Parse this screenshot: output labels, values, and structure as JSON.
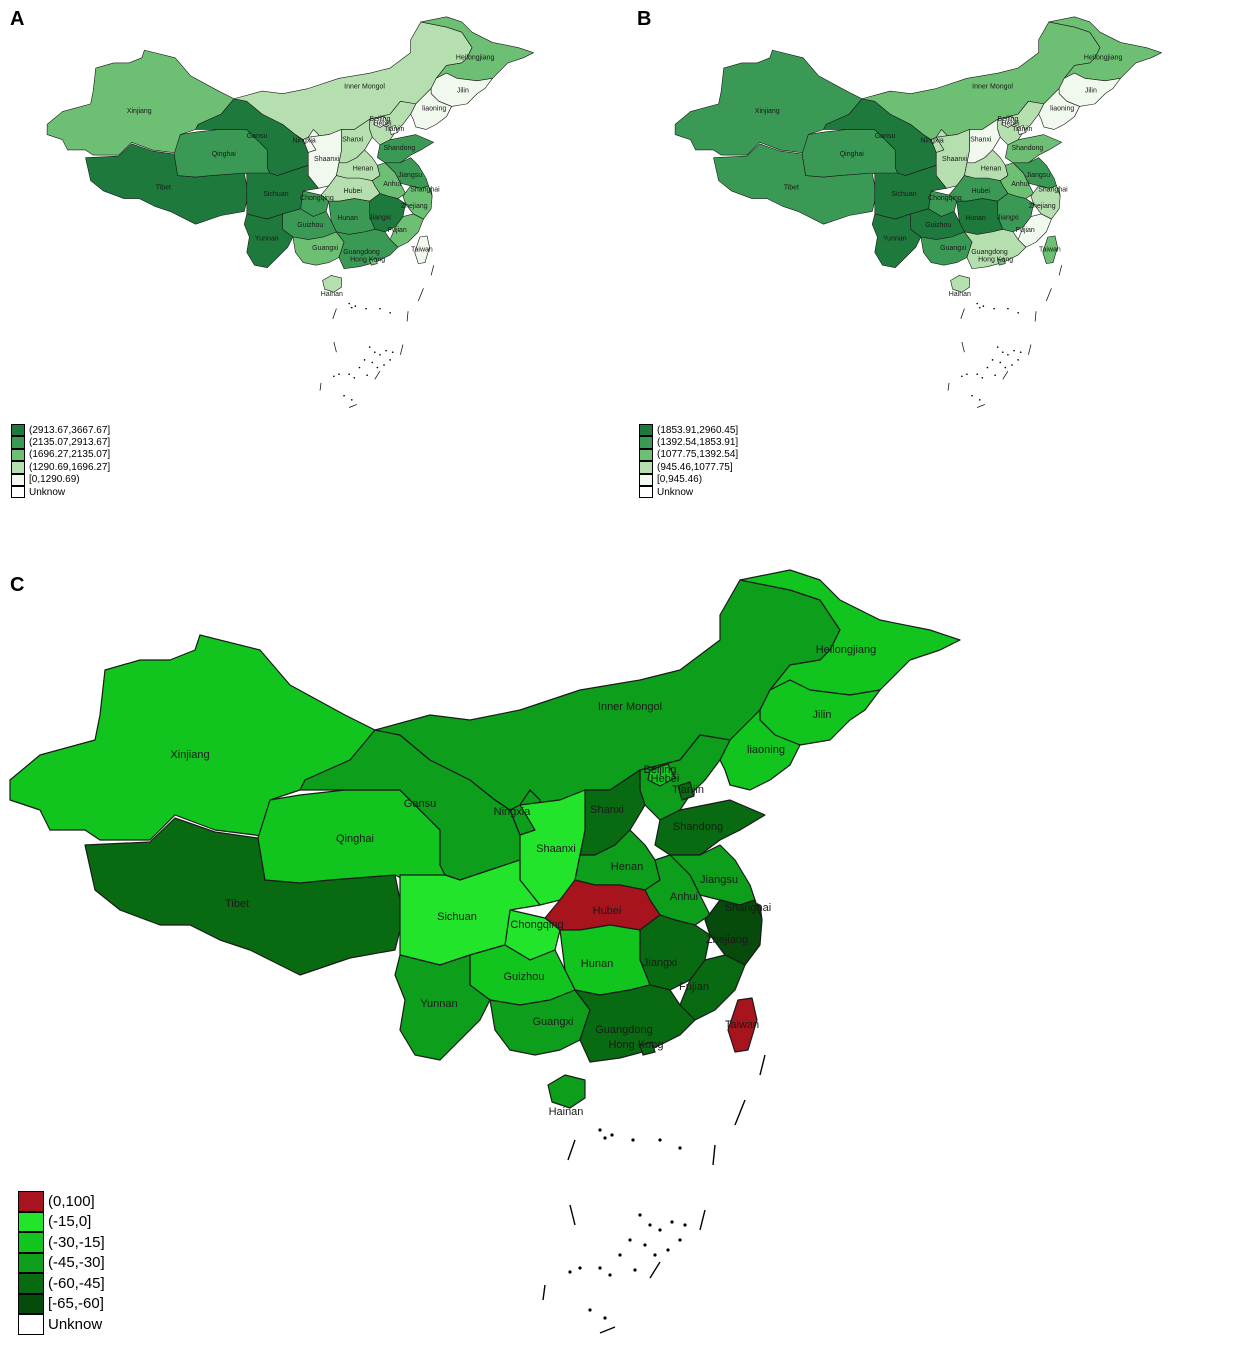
{
  "panels": [
    {
      "letter": "A",
      "legend": {
        "items": [
          {
            "label": "(2913.67,3667.67]",
            "color": "#1e7a3c"
          },
          {
            "label": "(2135.07,2913.67]",
            "color": "#3a9a55"
          },
          {
            "label": "(1696.27,2135.07]",
            "color": "#6dbf73"
          },
          {
            "label": "(1290.69,1696.27]",
            "color": "#b6dfb0"
          },
          {
            "label": "[0,1290.69)",
            "color": "#f1f9ef"
          },
          {
            "label": "Unknow",
            "color": "#ffffff"
          }
        ]
      },
      "provinces": {
        "Xinjiang": 2,
        "Tibet": 0,
        "Qinghai": 1,
        "Gansu": 0,
        "Inner Mongol": 3,
        "Heilongjiang": 2,
        "Jilin": 4,
        "liaoning": 4,
        "Sichuan": 0,
        "Yunnan": 0,
        "Guizhou": 1,
        "Chongqing": 1,
        "Shaanxi": 4,
        "Ningxia": 4,
        "Shanxi": 3,
        "Henan": 3,
        "Hubei": 3,
        "Hunan": 1,
        "Guangxi": 2,
        "Guangdong": 1,
        "Jiangxi": 0,
        "Fujian": 2,
        "Zhejiang": 2,
        "Anhui": 2,
        "Jiangsu": 1,
        "Shandong": 1,
        "Hebei": 3,
        "Beijing": 4,
        "Tianjin": 4,
        "Shanghai": 1,
        "Hainan": 3,
        "Taiwan": 4,
        "Hong Kong": 2
      }
    },
    {
      "letter": "B",
      "legend": {
        "items": [
          {
            "label": "(1853.91,2960.45]",
            "color": "#1e7a3c"
          },
          {
            "label": "(1392.54,1853.91]",
            "color": "#3a9a55"
          },
          {
            "label": "(1077.75,1392.54]",
            "color": "#6dbf73"
          },
          {
            "label": "(945.46,1077.75]",
            "color": "#b6dfb0"
          },
          {
            "label": "[0,945.46)",
            "color": "#f1f9ef"
          },
          {
            "label": "Unknow",
            "color": "#ffffff"
          }
        ]
      },
      "provinces": {
        "Xinjiang": 1,
        "Tibet": 1,
        "Qinghai": 1,
        "Gansu": 0,
        "Inner Mongol": 2,
        "Heilongjiang": 2,
        "Jilin": 4,
        "liaoning": 4,
        "Sichuan": 0,
        "Yunnan": 0,
        "Guizhou": 0,
        "Chongqing": 1,
        "Shaanxi": 3,
        "Ningxia": 3,
        "Shanxi": 4,
        "Henan": 3,
        "Hubei": 1,
        "Hunan": 0,
        "Guangxi": 1,
        "Guangdong": 3,
        "Jiangxi": 1,
        "Fujian": 4,
        "Zhejiang": 3,
        "Anhui": 2,
        "Jiangsu": 1,
        "Shandong": 2,
        "Hebei": 3,
        "Beijing": 4,
        "Tianjin": 4,
        "Shanghai": 2,
        "Hainan": 3,
        "Taiwan": 2,
        "Hong Kong": 2
      }
    },
    {
      "letter": "C",
      "legend": {
        "items": [
          {
            "label": "(0,100]",
            "color": "#a8141e"
          },
          {
            "label": "(-15,0]",
            "color": "#22e42a"
          },
          {
            "label": "(-30,-15]",
            "color": "#12c41e"
          },
          {
            "label": "(-45,-30]",
            "color": "#0d9e1c"
          },
          {
            "label": "(-60,-45]",
            "color": "#086b12"
          },
          {
            "label": "[-65,-60]",
            "color": "#064a0c"
          },
          {
            "label": "Unknow",
            "color": "#ffffff"
          }
        ]
      },
      "provinces": {
        "Xinjiang": 2,
        "Tibet": 4,
        "Qinghai": 2,
        "Gansu": 3,
        "Inner Mongol": 3,
        "Heilongjiang": 2,
        "Jilin": 2,
        "liaoning": 2,
        "Sichuan": 1,
        "Yunnan": 3,
        "Guizhou": 2,
        "Chongqing": 1,
        "Shaanxi": 1,
        "Ningxia": 3,
        "Shanxi": 4,
        "Henan": 3,
        "Hubei": 0,
        "Hunan": 2,
        "Guangxi": 3,
        "Guangdong": 4,
        "Jiangxi": 4,
        "Fujian": 4,
        "Zhejiang": 5,
        "Anhui": 3,
        "Jiangsu": 3,
        "Shandong": 4,
        "Hebei": 3,
        "Beijing": 2,
        "Tianjin": 4,
        "Shanghai": 5,
        "Hainan": 3,
        "Taiwan": 0,
        "Hong Kong": 4
      }
    }
  ]
}
